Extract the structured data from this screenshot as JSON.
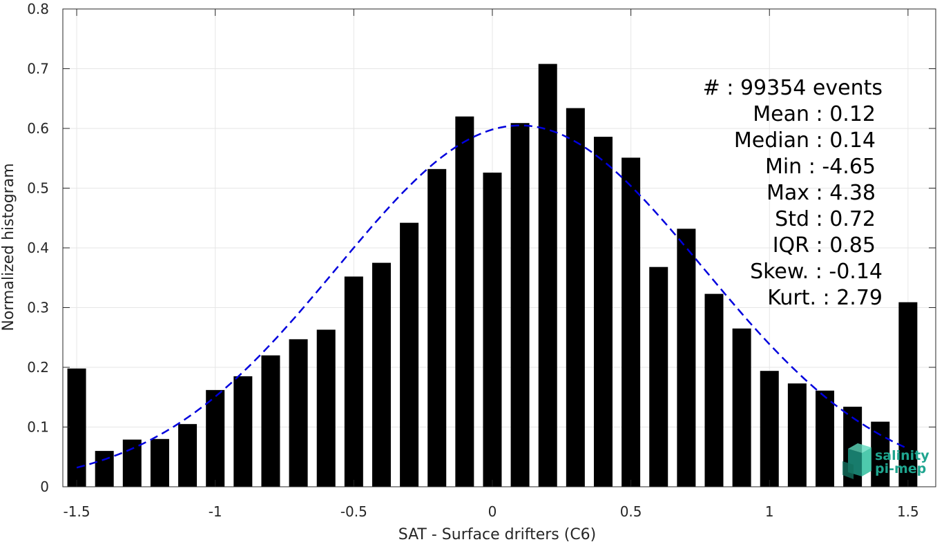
{
  "chart_data": {
    "type": "bar",
    "x": [
      -1.5,
      -1.4,
      -1.3,
      -1.2,
      -1.1,
      -1.0,
      -0.9,
      -0.8,
      -0.7,
      -0.6,
      -0.5,
      -0.4,
      -0.3,
      -0.2,
      -0.1,
      0.0,
      0.1,
      0.2,
      0.3,
      0.4,
      0.5,
      0.6,
      0.7,
      0.8,
      0.9,
      1.0,
      1.1,
      1.2,
      1.3,
      1.4,
      1.5
    ],
    "values": [
      0.198,
      0.06,
      0.079,
      0.08,
      0.105,
      0.162,
      0.185,
      0.22,
      0.247,
      0.263,
      0.352,
      0.375,
      0.442,
      0.532,
      0.62,
      0.526,
      0.609,
      0.708,
      0.634,
      0.586,
      0.551,
      0.368,
      0.432,
      0.323,
      0.265,
      0.194,
      0.173,
      0.161,
      0.134,
      0.109,
      0.309
    ],
    "fit": {
      "type": "gaussian",
      "mean": 0.12,
      "std": 0.66,
      "x_range": [
        -1.5,
        1.5
      ],
      "color": "#0000dd",
      "style": "dashed"
    },
    "bar_color": "#000000",
    "xlabel": "SAT - Surface drifters (C6)",
    "ylabel": "Normalized histogram",
    "xlim": [
      -1.55,
      1.6
    ],
    "ylim": [
      0,
      0.8
    ],
    "xticks": [
      "-1.5",
      "-1",
      "-0.5",
      "0",
      "0.5",
      "1",
      "1.5"
    ],
    "xtick_values": [
      -1.5,
      -1,
      -0.5,
      0,
      0.5,
      1,
      1.5
    ],
    "yticks": [
      "0",
      "0.1",
      "0.2",
      "0.3",
      "0.4",
      "0.5",
      "0.6",
      "0.7",
      "0.8"
    ],
    "ytick_values": [
      0,
      0.1,
      0.2,
      0.3,
      0.4,
      0.5,
      0.6,
      0.7,
      0.8
    ],
    "grid": true,
    "stats": [
      "#  : 99354 events",
      "Mean : 0.12",
      "Median : 0.14",
      "Min : -4.65",
      "Max : 4.38",
      "Std : 0.72",
      "IQR : 0.85",
      "Skew. : -0.14",
      "Kurt. : 2.79"
    ]
  },
  "logo": {
    "line1": "salinity",
    "line2": "pi-mep",
    "color": "#1fa58f"
  }
}
